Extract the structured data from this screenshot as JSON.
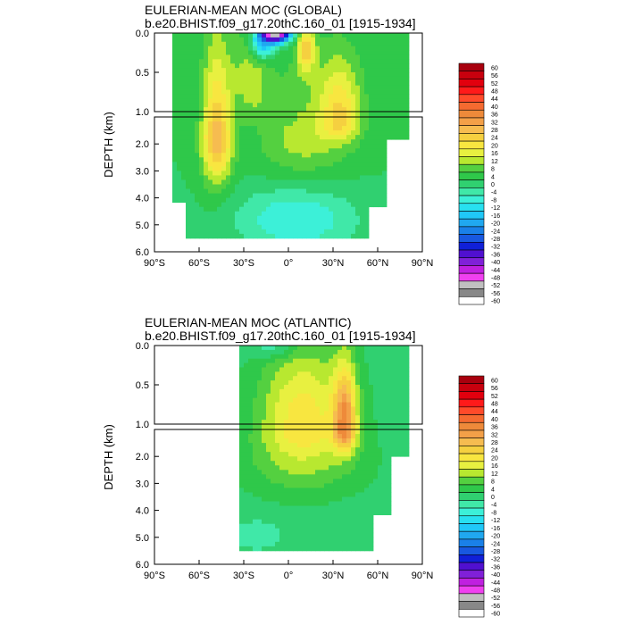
{
  "chart_data": [
    {
      "type": "heatmap",
      "title": "EULERIAN-MEAN MOC (GLOBAL)",
      "subtitle": "b.e20.BHIST.f09_g17.20thC.160_01 [1915-1934]",
      "ylabel": "DEPTH (km)",
      "xlabel": "",
      "x_ticks": [
        "90°S",
        "60°S",
        "30°S",
        "0°",
        "30°N",
        "60°N",
        "90°N"
      ],
      "y_ticks_upper": [
        "0.0",
        "0.5",
        "1.0"
      ],
      "y_ticks_lower": [
        "2.0",
        "3.0",
        "4.0",
        "5.0",
        "6.0"
      ],
      "xlim": [
        -90,
        90
      ],
      "ylim_upper_km": [
        0,
        1
      ],
      "ylim_lower_km": [
        1,
        6
      ],
      "max_sv": 32,
      "min_sv": -60,
      "cells": [
        {
          "lat": -45,
          "depth": 1.0,
          "value": 30
        },
        {
          "lat": -50,
          "depth": 2.0,
          "value": 28
        },
        {
          "lat": -35,
          "depth": 0.2,
          "value": 12
        },
        {
          "lat": -10,
          "depth": 0.05,
          "value": -50
        },
        {
          "lat": 5,
          "depth": 0.3,
          "value": 18
        },
        {
          "lat": 35,
          "depth": 0.9,
          "value": 30
        },
        {
          "lat": 30,
          "depth": 2.0,
          "value": 18
        },
        {
          "lat": 0,
          "depth": 4.5,
          "value": -6
        }
      ]
    },
    {
      "type": "heatmap",
      "title": "EULERIAN-MEAN MOC (ATLANTIC)",
      "subtitle": "b.e20.BHIST.f09_g17.20thC.160_01 [1915-1934]",
      "ylabel": "DEPTH (km)",
      "xlabel": "",
      "x_ticks": [
        "90°S",
        "60°S",
        "30°S",
        "0°",
        "30°N",
        "60°N",
        "90°N"
      ],
      "y_ticks_upper": [
        "0.0",
        "0.5",
        "1.0"
      ],
      "y_ticks_lower": [
        "2.0",
        "3.0",
        "4.0",
        "5.0",
        "6.0"
      ],
      "xlim": [
        -90,
        90
      ],
      "ylim_upper_km": [
        0,
        1
      ],
      "ylim_lower_km": [
        1,
        6
      ],
      "max_sv": 30,
      "min_sv": -8,
      "cells": [
        {
          "lat": 40,
          "depth": 1.0,
          "value": 30
        },
        {
          "lat": 10,
          "depth": 0.6,
          "value": 20
        },
        {
          "lat": -10,
          "depth": 0.1,
          "value": 8
        },
        {
          "lat": 20,
          "depth": 2.0,
          "value": 16
        },
        {
          "lat": 10,
          "depth": 4.0,
          "value": 4
        },
        {
          "lat": -25,
          "depth": 4.8,
          "value": -2
        }
      ]
    }
  ],
  "colorbar": {
    "labels": [
      "60",
      "56",
      "52",
      "48",
      "44",
      "40",
      "36",
      "32",
      "28",
      "24",
      "20",
      "16",
      "12",
      "8",
      "4",
      "0",
      "-4",
      "-8",
      "-12",
      "-16",
      "-20",
      "-24",
      "-28",
      "-32",
      "-36",
      "-40",
      "-44",
      "-48",
      "-52",
      "-56",
      "-60"
    ],
    "colors": [
      "#a8000e",
      "#c8000e",
      "#e2000e",
      "#ff1a1a",
      "#ff4a2a",
      "#f56a30",
      "#ee8a3a",
      "#f3a048",
      "#f6bc50",
      "#f5d040",
      "#f8e640",
      "#e8f040",
      "#b8e830",
      "#54d040",
      "#2fc84a",
      "#30d070",
      "#40e8a8",
      "#3cf0d8",
      "#28e0f0",
      "#20c8f8",
      "#20a8f0",
      "#1a80e8",
      "#1858e0",
      "#1020d8",
      "#5010d0",
      "#8020d8",
      "#c020e0",
      "#f040f0",
      "#c0c0c0",
      "#888888",
      "#ffffff"
    ]
  }
}
